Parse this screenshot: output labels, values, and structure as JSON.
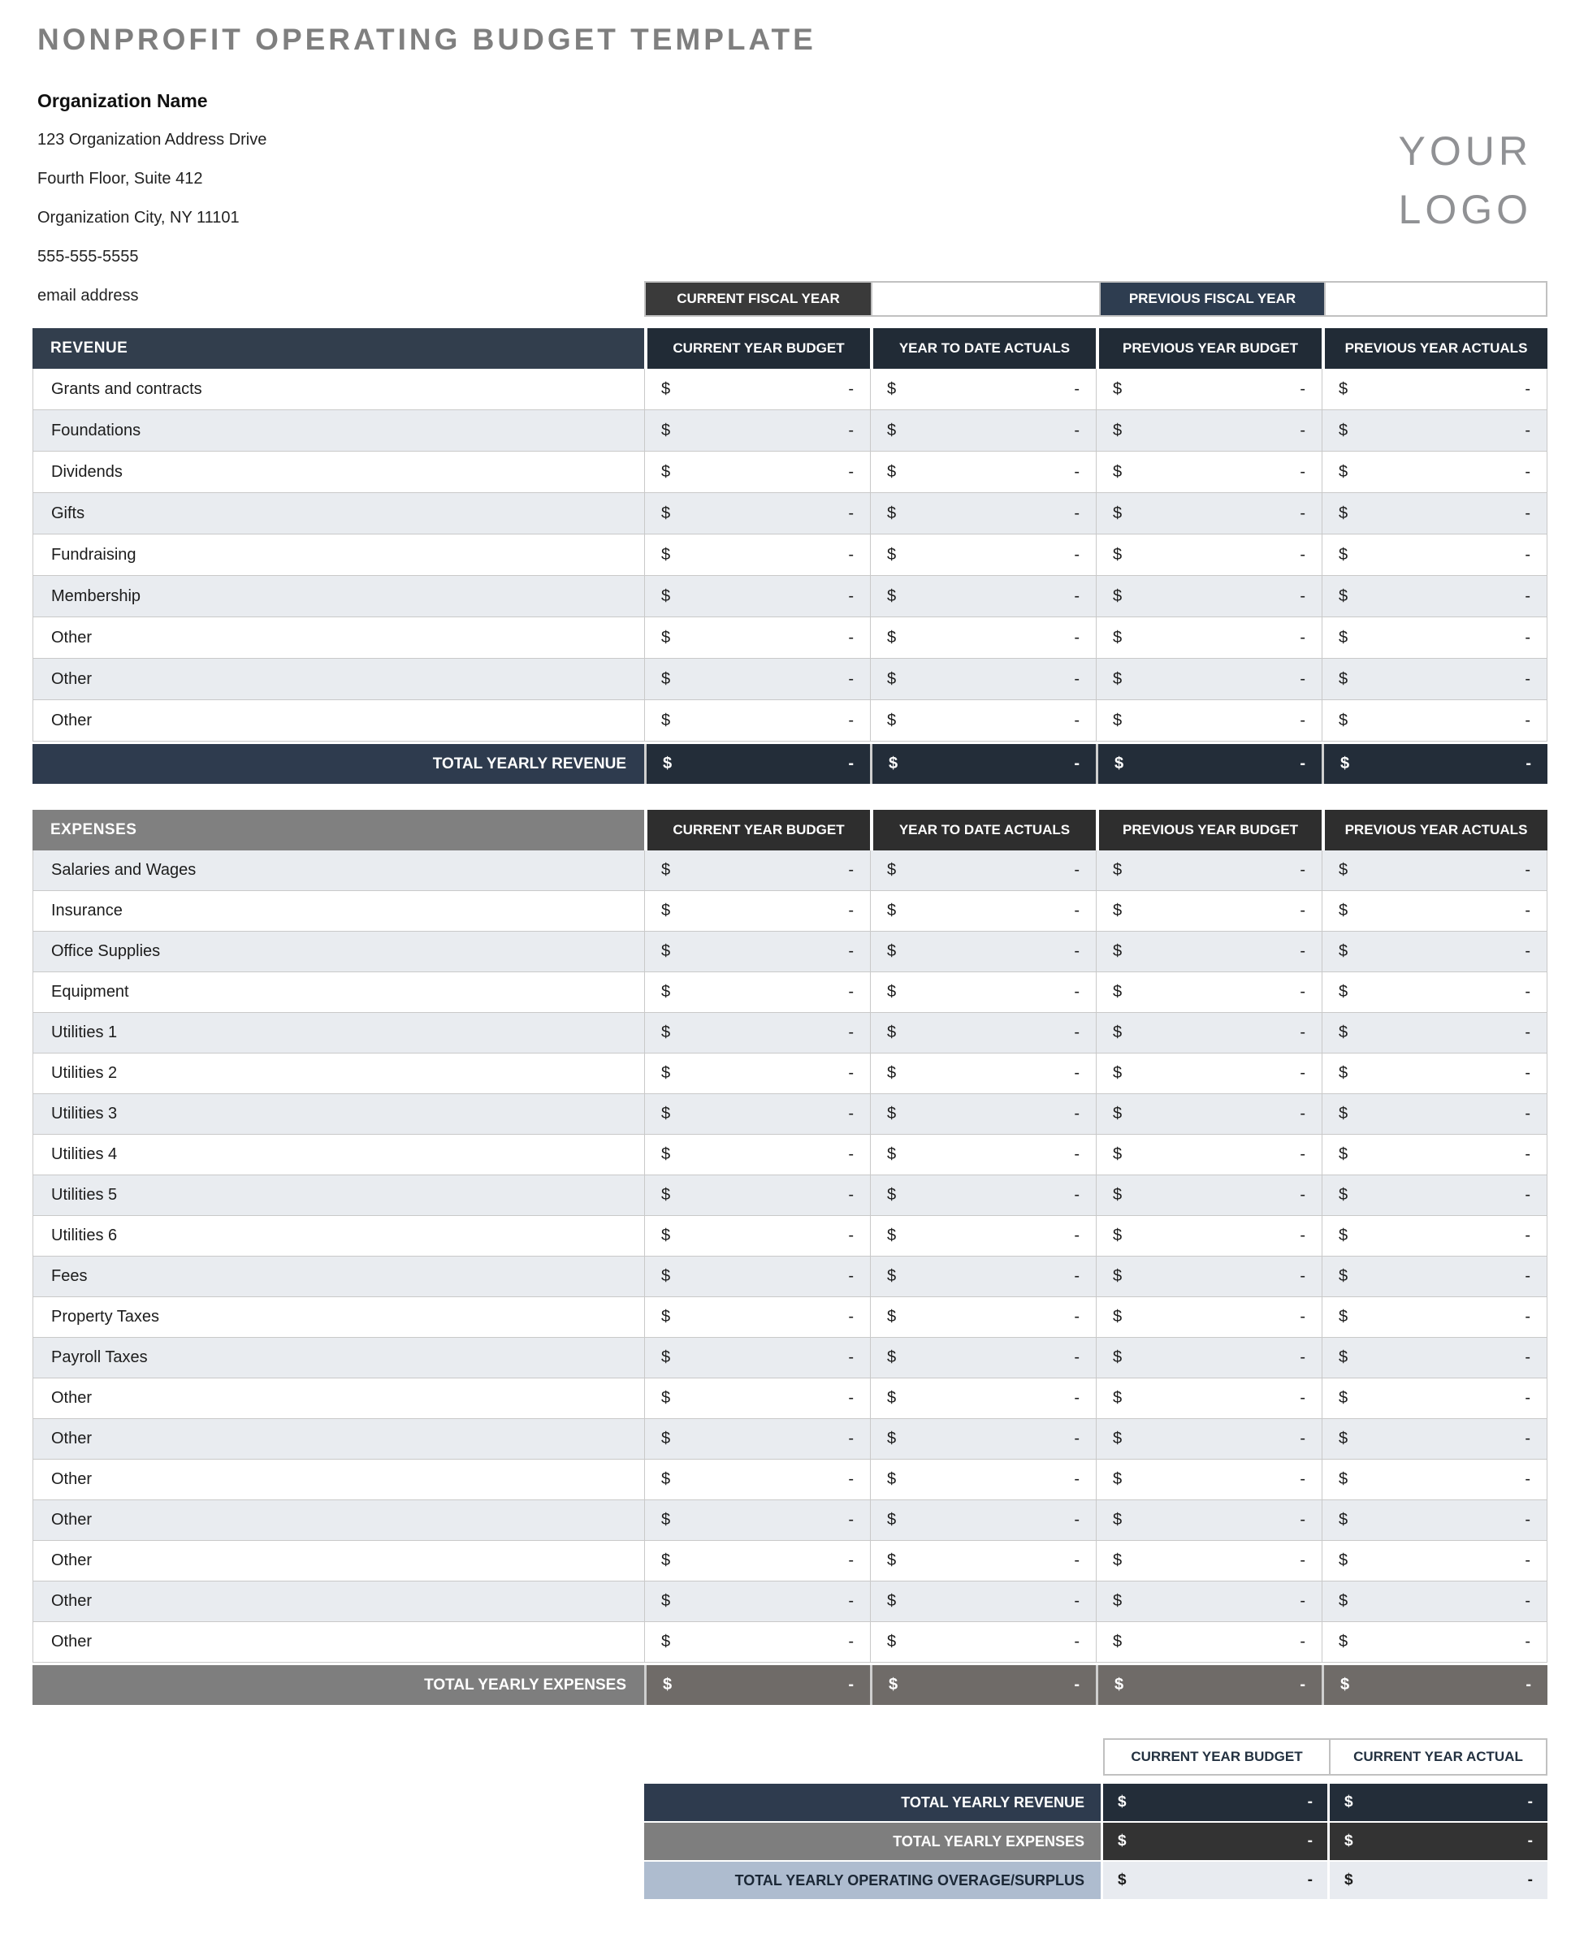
{
  "page": {
    "title": "NONPROFIT OPERATING BUDGET TEMPLATE",
    "logo": {
      "line1": "YOUR",
      "line2": "LOGO"
    }
  },
  "organization": {
    "name": "Organization Name",
    "lines": [
      "123 Organization Address Drive",
      "Fourth Floor, Suite 412",
      "Organization City, NY  11101",
      "555-555-5555",
      "email address"
    ]
  },
  "fiscal_bar": {
    "current": {
      "label": "CURRENT FISCAL YEAR",
      "value": ""
    },
    "previous": {
      "label": "PREVIOUS FISCAL YEAR",
      "value": ""
    }
  },
  "money_columns": [
    "CURRENT YEAR BUDGET",
    "YEAR TO DATE ACTUALS",
    "PREVIOUS YEAR BUDGET",
    "PREVIOUS YEAR ACTUALS"
  ],
  "cell": {
    "currency": "$",
    "value": "-"
  },
  "revenue": {
    "section_label": "REVENUE",
    "row_labels": [
      "Grants and contracts",
      "Foundations",
      "Dividends",
      "Gifts",
      "Fundraising",
      "Membership",
      "Other",
      "Other",
      "Other"
    ],
    "total_label": "TOTAL YEARLY REVENUE"
  },
  "expenses": {
    "section_label": "EXPENSES",
    "row_labels": [
      "Salaries and Wages",
      "Insurance",
      "Office Supplies",
      "Equipment",
      "Utilities 1",
      "Utilities 2",
      "Utilities 3",
      "Utilities 4",
      "Utilities 5",
      "Utilities 6",
      "Fees",
      "Property Taxes",
      "Payroll Taxes",
      "Other",
      "Other",
      "Other",
      "Other",
      "Other",
      "Other",
      "Other"
    ],
    "total_label": "TOTAL YEARLY EXPENSES"
  },
  "summary": {
    "columns": [
      "CURRENT YEAR BUDGET",
      "CURRENT YEAR ACTUAL"
    ],
    "rows": [
      {
        "label": "TOTAL YEARLY REVENUE"
      },
      {
        "label": "TOTAL YEARLY EXPENSES"
      },
      {
        "label": "TOTAL YEARLY OPERATING OVERAGE/SURPLUS"
      }
    ]
  },
  "colors": {
    "title_gray": "#7f7f7f",
    "logo_gray": "#909194",
    "navy_section_header": "#323e4d",
    "navy_column_header": "#212b36",
    "navy_total_label": "#2e3b4e",
    "navy_total_cell": "#232d39",
    "gray_section_header": "#808080",
    "charcoal_column_header": "#2e2e2e",
    "gray_total_cell": "#6f6b68",
    "summary_expenses_cell": "#333333",
    "fiscal_current_bg": "#3a3a3a",
    "fiscal_previous_bg": "#2e3d50",
    "row_alt_bg": "#e9ecf0",
    "row_border": "#c9c9c9",
    "surplus_label_bg": "#aebccf",
    "surplus_cell_bg": "#e8ebf0",
    "summary_header_text": "#233140"
  }
}
